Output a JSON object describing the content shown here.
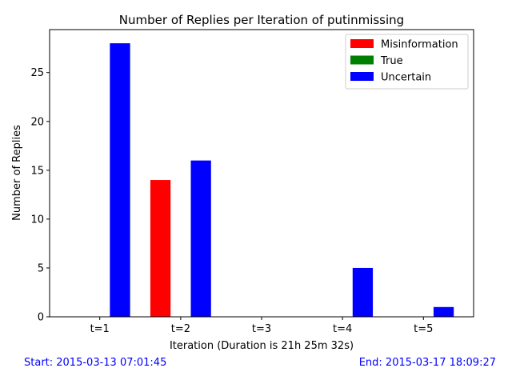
{
  "chart_data": {
    "type": "bar",
    "title": "Number of Replies per Iteration of putinmissing",
    "xlabel": "Iteration (Duration is 21h 25m 32s)",
    "ylabel": "Number of Replies",
    "categories": [
      "t=1",
      "t=2",
      "t=3",
      "t=4",
      "t=5"
    ],
    "series": [
      {
        "name": "Misinformation",
        "color": "#ff0000",
        "values": [
          0,
          14,
          0,
          0,
          0
        ]
      },
      {
        "name": "True",
        "color": "#008000",
        "values": [
          0,
          0,
          0,
          0,
          0
        ]
      },
      {
        "name": "Uncertain",
        "color": "#0000ff",
        "values": [
          28,
          16,
          0,
          5,
          1
        ]
      }
    ],
    "ylim": [
      0,
      29.4
    ],
    "yticks": [
      0,
      5,
      10,
      15,
      20,
      25
    ],
    "grid": false,
    "legend_position": "top-right"
  },
  "footer": {
    "start": "Start: 2015-03-13 07:01:45",
    "end": "End: 2015-03-17 18:09:27"
  }
}
